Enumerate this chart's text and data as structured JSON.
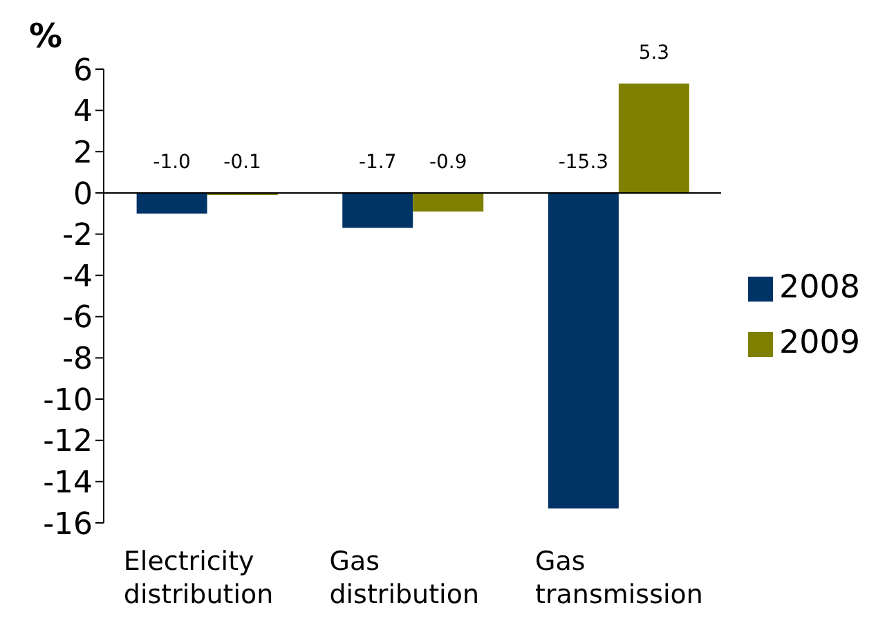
{
  "chart_data": {
    "type": "bar",
    "ylabel": "%",
    "categories": [
      "Electricity distribution",
      "Gas distribution",
      "Gas transmission"
    ],
    "series": [
      {
        "name": "2008",
        "color": "#003366",
        "values": [
          -1.0,
          -1.7,
          -15.3
        ],
        "value_labels": [
          "-1.0",
          "-1.7",
          "-15.3"
        ]
      },
      {
        "name": "2009",
        "color": "#808000",
        "values": [
          -0.1,
          -0.9,
          5.3
        ],
        "value_labels": [
          "-0.1",
          "-0.9",
          "5.3"
        ]
      }
    ],
    "ylim": [
      -16,
      6
    ],
    "yticks": [
      -16,
      -14,
      -12,
      -10,
      -8,
      -6,
      -4,
      -2,
      0,
      2,
      4,
      6
    ],
    "legend": "right"
  }
}
